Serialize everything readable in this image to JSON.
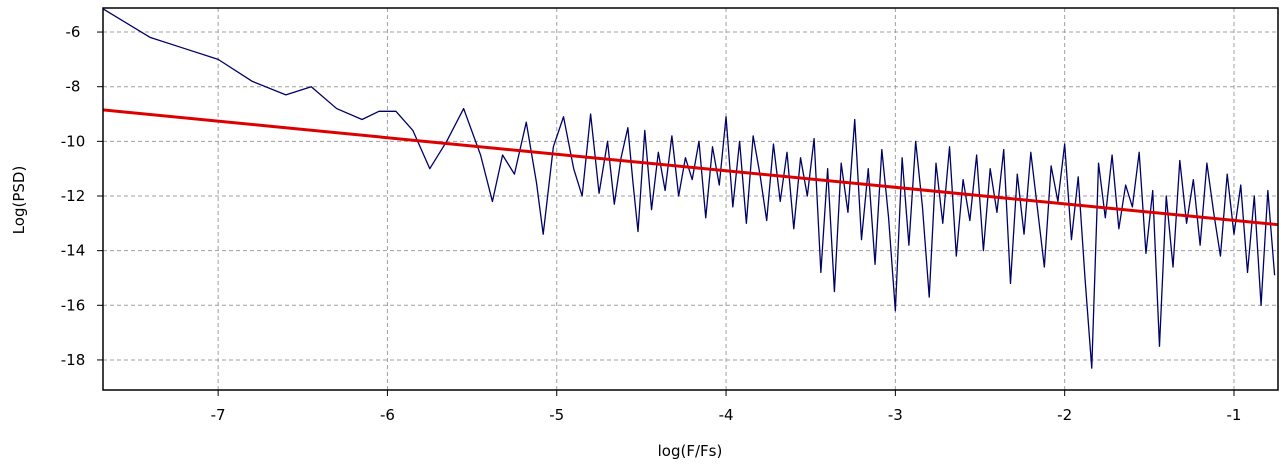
{
  "chart_data": {
    "type": "line",
    "xlabel": "log(F/Fs)",
    "ylabel": "Log(PSD)",
    "xlim": [
      -7.68,
      -0.74
    ],
    "ylim": [
      -19.1,
      -5.12
    ],
    "xticks": [
      -7,
      -6,
      -5,
      -4,
      -3,
      -2,
      -1
    ],
    "yticks": [
      -6,
      -8,
      -10,
      -12,
      -14,
      -16,
      -18
    ],
    "grid": true,
    "series": [
      {
        "color": "#000066",
        "x": [
          -7.68,
          -7.4,
          -7.2,
          -7.0,
          -6.8,
          -6.6,
          -6.45,
          -6.3,
          -6.15,
          -6.05,
          -5.95,
          -5.85,
          -5.75,
          -5.65,
          -5.55,
          -5.45,
          -5.38,
          -5.32,
          -5.25,
          -5.18,
          -5.12,
          -5.08,
          -5.02,
          -4.96,
          -4.9,
          -4.85,
          -4.8,
          -4.75,
          -4.7,
          -4.66,
          -4.62,
          -4.58,
          -4.55,
          -4.52,
          -4.48,
          -4.44,
          -4.4,
          -4.36,
          -4.32,
          -4.28,
          -4.24,
          -4.2,
          -4.16,
          -4.12,
          -4.08,
          -4.04,
          -4.0,
          -3.96,
          -3.92,
          -3.88,
          -3.84,
          -3.8,
          -3.76,
          -3.72,
          -3.68,
          -3.64,
          -3.6,
          -3.56,
          -3.52,
          -3.48,
          -3.44,
          -3.4,
          -3.36,
          -3.32,
          -3.28,
          -3.24,
          -3.2,
          -3.16,
          -3.12,
          -3.08,
          -3.04,
          -3.0,
          -2.96,
          -2.92,
          -2.88,
          -2.84,
          -2.8,
          -2.76,
          -2.72,
          -2.68,
          -2.64,
          -2.6,
          -2.56,
          -2.52,
          -2.48,
          -2.44,
          -2.4,
          -2.36,
          -2.32,
          -2.28,
          -2.24,
          -2.2,
          -2.16,
          -2.12,
          -2.08,
          -2.04,
          -2.0,
          -1.96,
          -1.92,
          -1.88,
          -1.84,
          -1.8,
          -1.76,
          -1.72,
          -1.68,
          -1.64,
          -1.6,
          -1.56,
          -1.52,
          -1.48,
          -1.44,
          -1.4,
          -1.36,
          -1.32,
          -1.28,
          -1.24,
          -1.2,
          -1.16,
          -1.12,
          -1.08,
          -1.04,
          -1.0,
          -0.96,
          -0.92,
          -0.88,
          -0.84,
          -0.8,
          -0.76
        ],
        "values": [
          -5.15,
          -6.2,
          -6.6,
          -7.0,
          -7.8,
          -8.3,
          -8.0,
          -8.8,
          -9.2,
          -8.9,
          -8.9,
          -9.6,
          -11.0,
          -10.0,
          -8.8,
          -10.5,
          -12.2,
          -10.5,
          -11.2,
          -9.3,
          -11.5,
          -13.4,
          -10.2,
          -9.1,
          -11.0,
          -12.0,
          -9.0,
          -11.9,
          -10.0,
          -12.3,
          -10.6,
          -9.5,
          -11.5,
          -13.3,
          -9.6,
          -12.5,
          -10.4,
          -11.8,
          -9.8,
          -12.0,
          -10.6,
          -11.4,
          -10.0,
          -12.8,
          -10.2,
          -11.6,
          -9.1,
          -12.4,
          -10.0,
          -13.0,
          -9.8,
          -11.2,
          -12.9,
          -10.1,
          -12.2,
          -10.4,
          -13.2,
          -10.6,
          -12.0,
          -9.9,
          -14.8,
          -11.0,
          -15.5,
          -10.8,
          -12.6,
          -9.2,
          -13.6,
          -11.0,
          -14.5,
          -10.3,
          -12.8,
          -16.2,
          -10.6,
          -13.8,
          -10.0,
          -12.4,
          -15.7,
          -10.8,
          -13.0,
          -10.2,
          -14.2,
          -11.4,
          -12.9,
          -10.5,
          -14.0,
          -11.0,
          -12.6,
          -10.3,
          -15.2,
          -11.2,
          -13.4,
          -10.4,
          -12.5,
          -14.6,
          -10.9,
          -12.2,
          -10.1,
          -13.6,
          -11.3,
          -15.0,
          -18.3,
          -10.8,
          -12.8,
          -10.5,
          -13.2,
          -11.6,
          -12.4,
          -10.4,
          -14.1,
          -11.8,
          -17.5,
          -12.0,
          -14.6,
          -10.7,
          -13.0,
          -11.4,
          -13.8,
          -10.8,
          -12.6,
          -14.2,
          -11.2,
          -13.4,
          -11.6,
          -14.8,
          -12.0,
          -16.0,
          -11.8,
          -14.9
        ]
      },
      {
        "color": "#dd0000",
        "x": [
          -7.68,
          -0.74
        ],
        "values": [
          -8.85,
          -13.05
        ]
      }
    ]
  }
}
